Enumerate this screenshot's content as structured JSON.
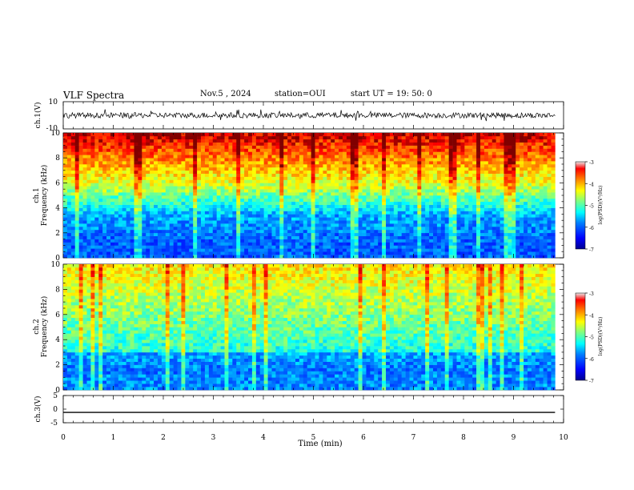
{
  "header": {
    "title": "VLF Spectra",
    "date": "Nov.5 , 2024",
    "station": "station=OUI",
    "start": "start UT = 19: 50: 0"
  },
  "chart_data": [
    {
      "type": "line",
      "title": "",
      "ylabel": "ch.1(V)",
      "ylim": [
        -10,
        10
      ],
      "yticks": [
        "10",
        "-10"
      ],
      "description_visible": "waveform trace"
    },
    {
      "type": "heatmap",
      "ylabel_lines": [
        "ch.1",
        "Frequency (kHz)"
      ],
      "ylim": [
        0,
        10
      ],
      "yticks": [
        "0",
        "2",
        "4",
        "6",
        "8",
        "10"
      ],
      "colorbar": {
        "label": "log(PSD)(V²/Hz)",
        "ticks": [
          "-3",
          "-4",
          "-5",
          "-6",
          "-7"
        ],
        "range": [
          -7,
          -3
        ]
      }
    },
    {
      "type": "heatmap",
      "ylabel_lines": [
        "ch.2",
        "Frequency (kHz)"
      ],
      "ylim": [
        0,
        10
      ],
      "yticks": [
        "0",
        "2",
        "4",
        "6",
        "8",
        "10"
      ],
      "colorbar": {
        "label": "log(PSD)(V²/Hz)",
        "ticks": [
          "-3",
          "-4",
          "-5",
          "-6",
          "-7"
        ],
        "range": [
          -7,
          -3
        ]
      }
    },
    {
      "type": "line",
      "ylabel": "ch.3(V)",
      "ylim": [
        -5,
        5
      ],
      "yticks": [
        "5",
        "0",
        "-5"
      ],
      "series": [
        {
          "x": [
            0,
            9.83
          ],
          "y": [
            -1.2,
            -1.2
          ]
        }
      ]
    }
  ],
  "xaxis": {
    "label": "Time (min)",
    "range": [
      0,
      10
    ],
    "ticks": [
      "0",
      "1",
      "2",
      "3",
      "4",
      "5",
      "6",
      "7",
      "8",
      "9",
      "10"
    ]
  },
  "colors": {
    "scale": [
      "#00008f",
      "#0000ff",
      "#0080ff",
      "#00ffff",
      "#80ff80",
      "#ffff00",
      "#ff8000",
      "#ff0000",
      "#800000"
    ]
  }
}
